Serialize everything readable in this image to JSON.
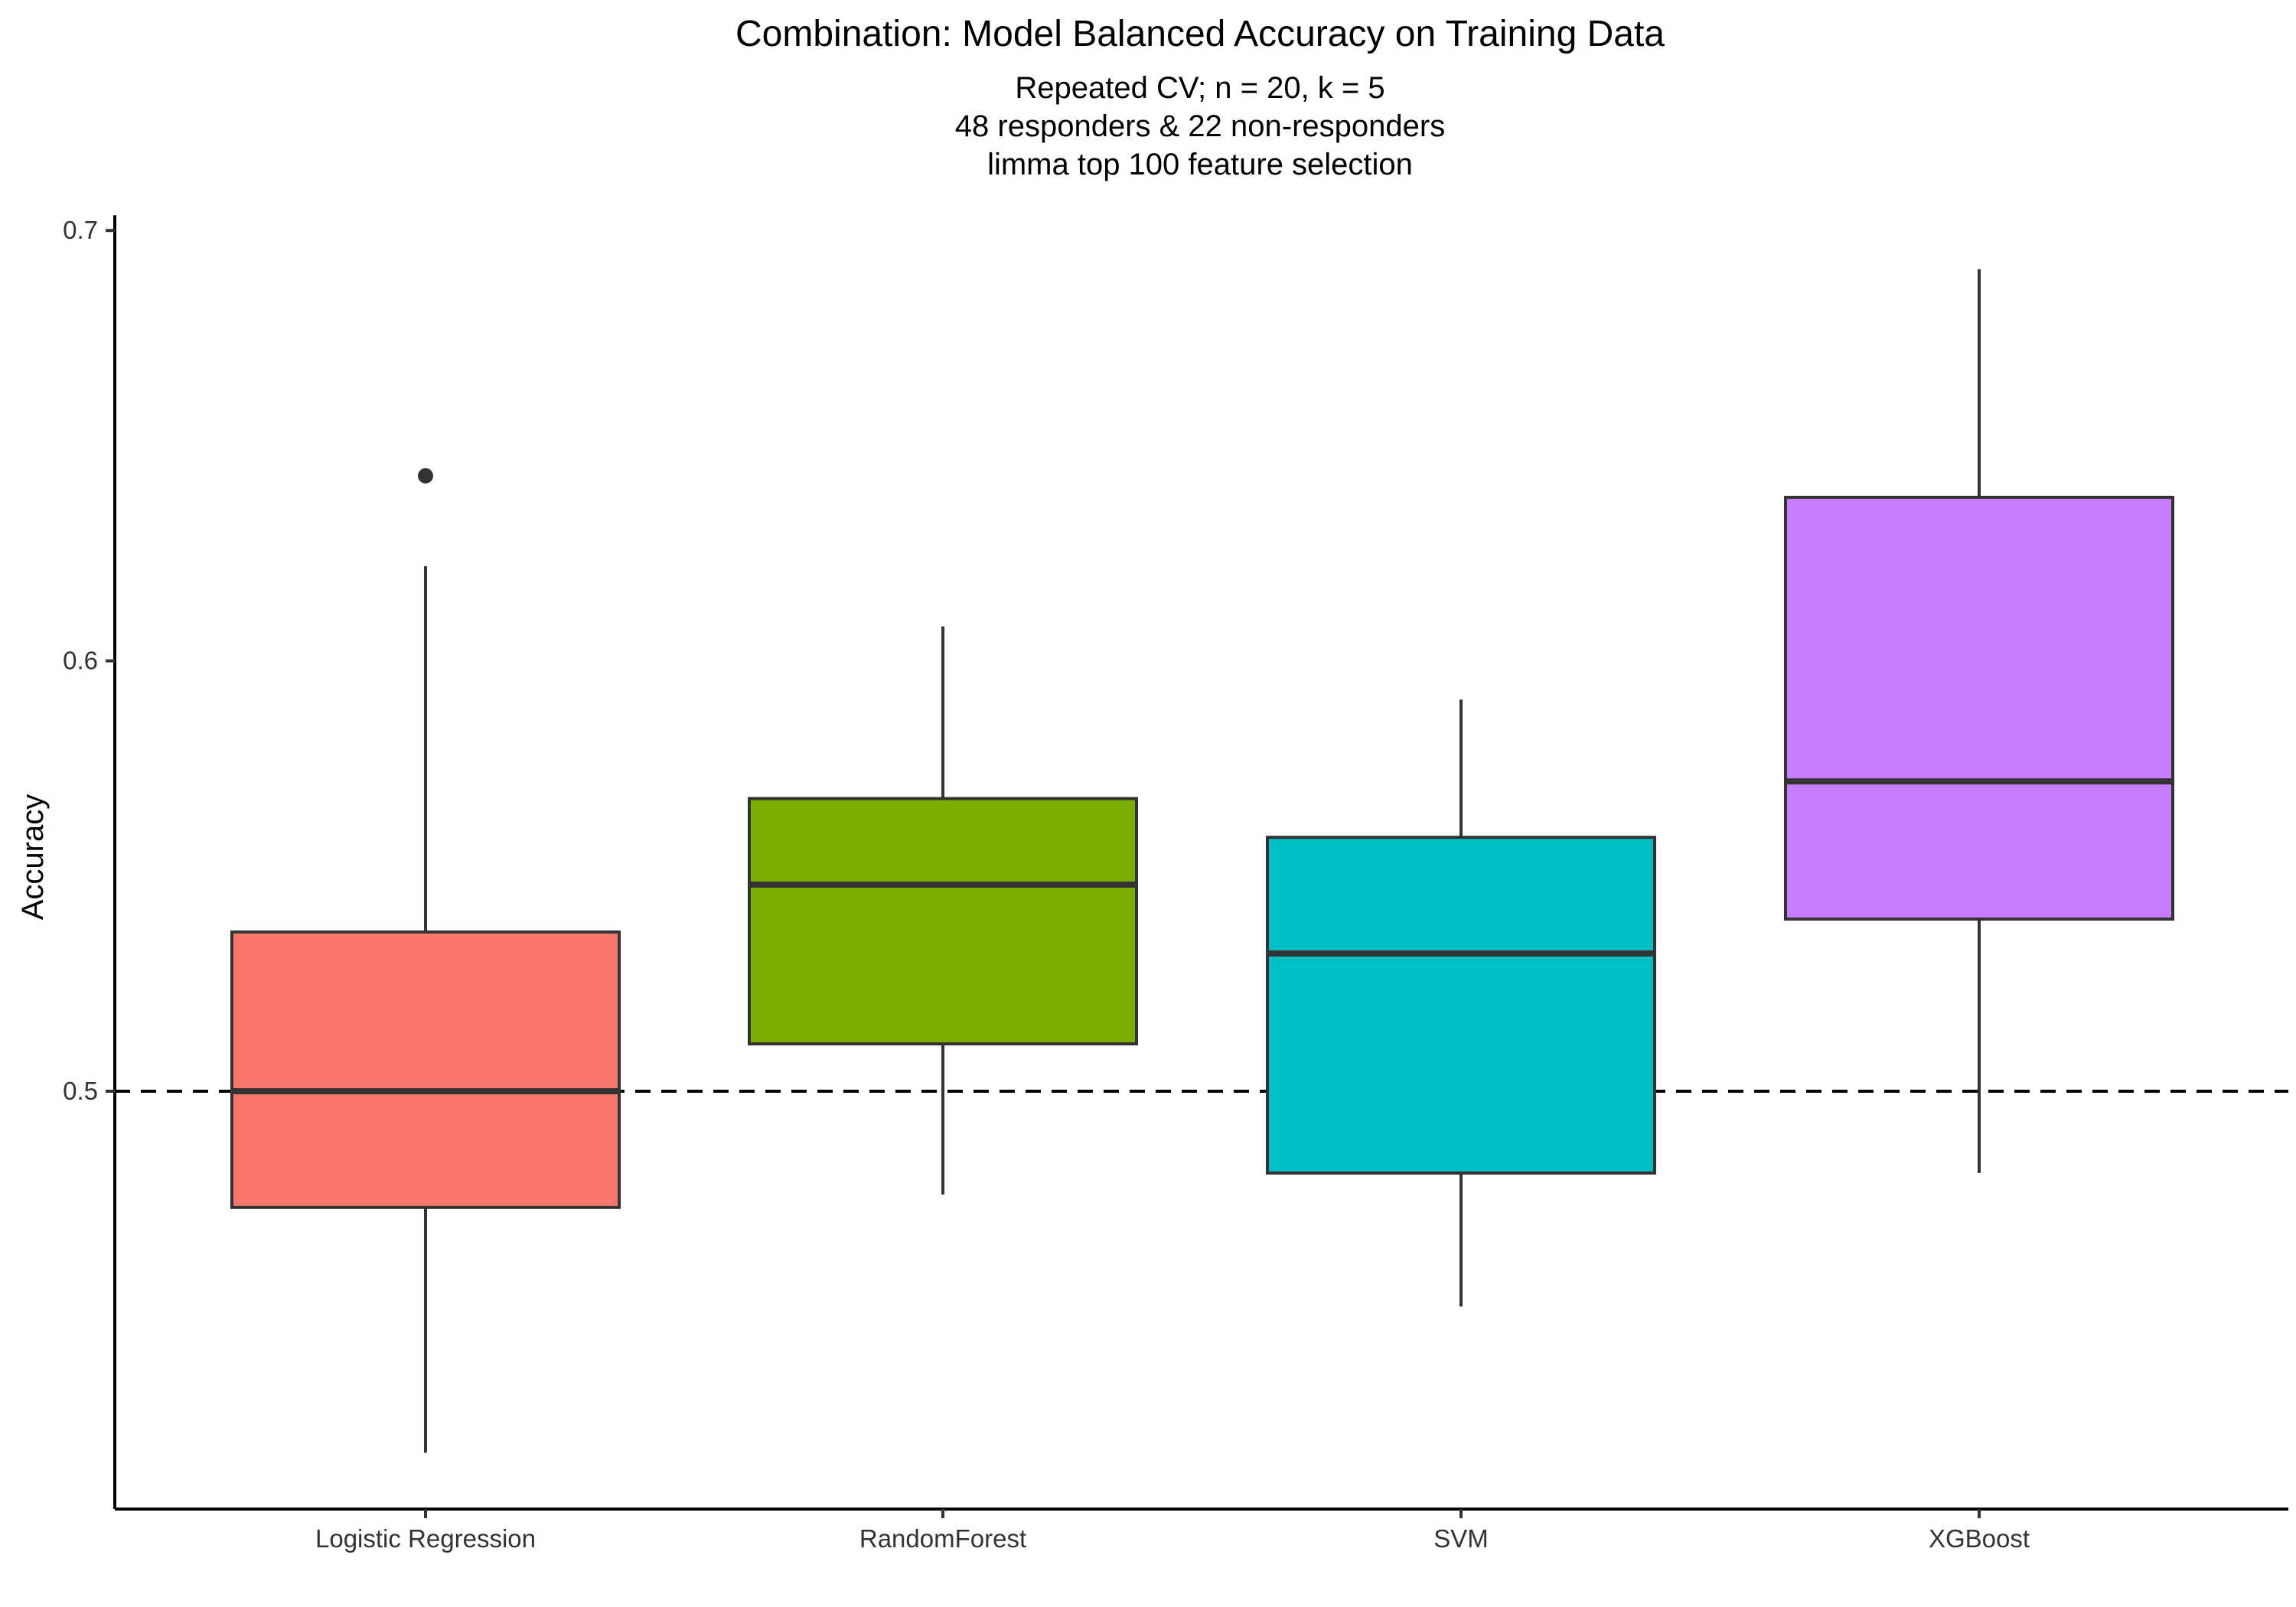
{
  "chart_data": {
    "type": "box",
    "title": "Combination: Model Balanced Accuracy on Training Data",
    "subtitle": [
      "Repeated CV; n = 20, k = 5",
      "48 responders & 22 non-responders",
      "limma top 100 feature selection"
    ],
    "xlabel": "",
    "ylabel": "Accuracy",
    "ylim": [
      0.4,
      0.7
    ],
    "yticks": [
      0.5,
      0.6,
      0.7
    ],
    "ytick_labels": [
      "0.5",
      "0.6",
      "0.7"
    ],
    "reference_line": {
      "y": 0.5,
      "style": "dashed"
    },
    "grid": false,
    "legend": "none",
    "categories": [
      "Logistic Regression",
      "RandomForest",
      "SVM",
      "XGBoost"
    ],
    "boxes": [
      {
        "category": "Logistic Regression",
        "whisker_low": 0.416,
        "q1": 0.473,
        "median": 0.5,
        "q3": 0.537,
        "whisker_high": 0.622,
        "outliers": [
          0.643
        ],
        "color": "#F8766D"
      },
      {
        "category": "RandomForest",
        "whisker_low": 0.476,
        "q1": 0.511,
        "median": 0.548,
        "q3": 0.568,
        "whisker_high": 0.608,
        "outliers": [],
        "color": "#7CAE00"
      },
      {
        "category": "SVM",
        "whisker_low": 0.45,
        "q1": 0.481,
        "median": 0.532,
        "q3": 0.559,
        "whisker_high": 0.591,
        "outliers": [],
        "color": "#00BFC4"
      },
      {
        "category": "XGBoost",
        "whisker_low": 0.481,
        "q1": 0.54,
        "median": 0.572,
        "q3": 0.638,
        "whisker_high": 0.691,
        "outliers": [],
        "color": "#C77CFF"
      }
    ]
  }
}
